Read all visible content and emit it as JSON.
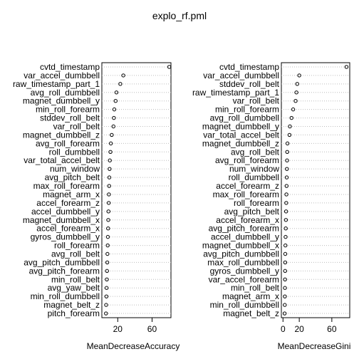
{
  "title": "explo_rf.pml",
  "chart_data": [
    {
      "type": "scatter",
      "xlabel": "MeanDecreaseAccuracy",
      "xticks": [
        20,
        60
      ],
      "xlim": [
        1.5,
        82
      ],
      "grid": "dotted horizontal",
      "variables": [
        "cvtd_timestamp",
        "var_accel_dumbbell",
        "raw_timestamp_part_1",
        "avg_roll_dumbbell",
        "magnet_dumbbell_y",
        "min_roll_forearm",
        "stddev_roll_belt",
        "var_roll_belt",
        "magnet_dumbbell_z",
        "avg_roll_forearm",
        "roll_dumbbell",
        "var_total_accel_belt",
        "num_window",
        "avg_pitch_belt",
        "max_roll_forearm",
        "magnet_arm_x",
        "accel_forearm_z",
        "accel_dumbbell_y",
        "magnet_dumbbell_x",
        "accel_forearm_x",
        "gyros_dumbbell_y",
        "roll_forearm",
        "avg_roll_belt",
        "avg_pitch_dumbbell",
        "avg_pitch_forearm",
        "min_roll_belt",
        "avg_yaw_belt",
        "min_roll_dumbbell",
        "magnet_belt_z",
        "pitch_forearm"
      ],
      "values": [
        80,
        26.5,
        23,
        18.5,
        17.5,
        16,
        15.5,
        15,
        13,
        12,
        11.5,
        10.8,
        10.5,
        10.2,
        10,
        9.7,
        9.5,
        9.2,
        9,
        8.8,
        8.5,
        8.3,
        8,
        7.8,
        7.5,
        7.3,
        7,
        6.8,
        6.5,
        6.3
      ]
    },
    {
      "type": "scatter",
      "xlabel": "MeanDecreaseGini",
      "xticks": [
        0,
        20,
        60
      ],
      "xlim": [
        -2,
        82
      ],
      "grid": "dotted horizontal",
      "variables": [
        "cvtd_timestamp",
        "var_accel_dumbbell",
        "stddev_roll_belt",
        "raw_timestamp_part_1",
        "var_roll_belt",
        "min_roll_forearm",
        "avg_roll_dumbbell",
        "magnet_dumbbell_y",
        "var_total_accel_belt",
        "magnet_dumbbell_z",
        "avg_roll_belt",
        "avg_roll_forearm",
        "num_window",
        "roll_dumbbell",
        "accel_forearm_z",
        "max_roll_forearm",
        "roll_forearm",
        "avg_pitch_belt",
        "accel_forearm_x",
        "avg_pitch_forearm",
        "accel_dumbbell_y",
        "magnet_dumbbell_x",
        "avg_pitch_dumbbell",
        "max_roll_dumbbell",
        "gyros_dumbbell_y",
        "var_accel_forearm",
        "min_roll_belt",
        "magnet_arm_x",
        "min_roll_dumbbell",
        "magnet_belt_z"
      ],
      "values": [
        78,
        20,
        17.5,
        16.5,
        15.5,
        12.5,
        10.5,
        8.5,
        8,
        5.5,
        5.2,
        5,
        4.8,
        4.6,
        4.4,
        4.2,
        4,
        3.8,
        3.6,
        3.4,
        3.2,
        3,
        2.8,
        2.7,
        2.6,
        2.5,
        2.4,
        2.3,
        2.2,
        2
      ]
    }
  ]
}
